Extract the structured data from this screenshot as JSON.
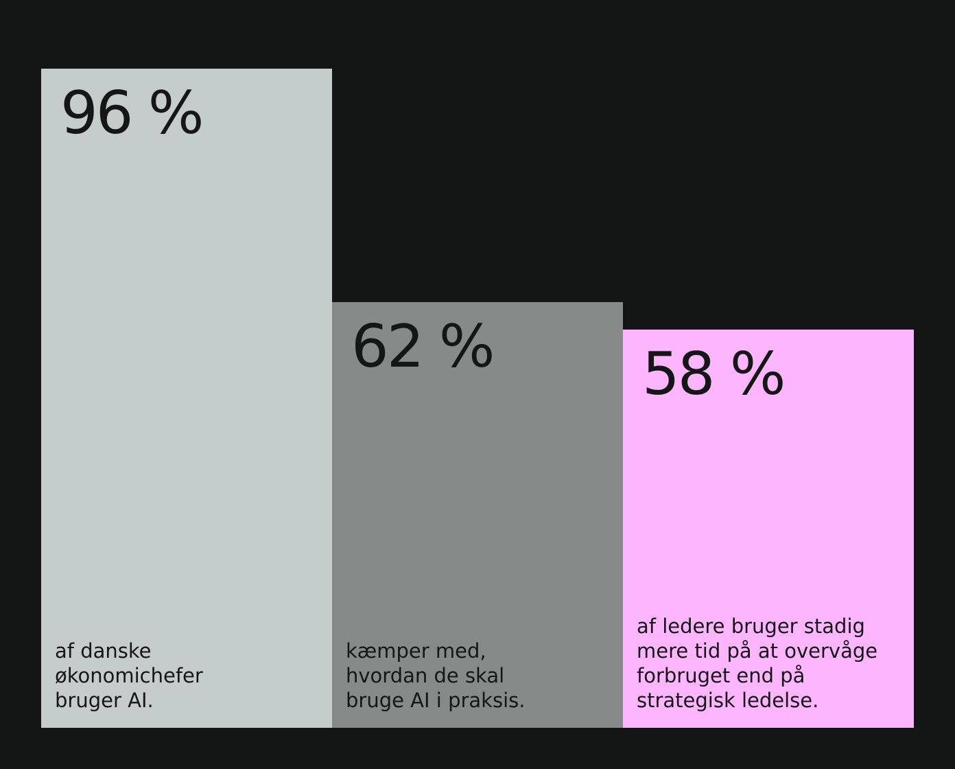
{
  "chart_data": {
    "type": "bar",
    "categories": [
      "af danske økonomichefer bruger AI.",
      "kæmper med, hvordan de skal bruge AI i praksis.",
      "af ledere bruger stadig mere tid på at overvåge forbruget end på strategisk ledelse."
    ],
    "values": [
      96,
      62,
      58
    ],
    "unit": "%",
    "ylim": [
      0,
      100
    ],
    "grid": false,
    "bars": [
      {
        "value": 96,
        "label": "96 %",
        "caption_lines": [
          "af danske",
          "økonomichefer",
          "bruger AI."
        ],
        "color": "#c4cdcb"
      },
      {
        "value": 62,
        "label": "62 %",
        "caption_lines": [
          "kæmper med,",
          "hvordan de skal",
          "bruge AI i praksis."
        ],
        "color": "#868b8a"
      },
      {
        "value": 58,
        "label": "58 %",
        "caption_lines": [
          "af ledere bruger stadig",
          "mere tid på at overvåge",
          "forbruget end på",
          "strategisk ledelse."
        ],
        "color": "#fdb6fe"
      }
    ]
  },
  "colors": {
    "background": "#131514",
    "text": "#151716"
  }
}
